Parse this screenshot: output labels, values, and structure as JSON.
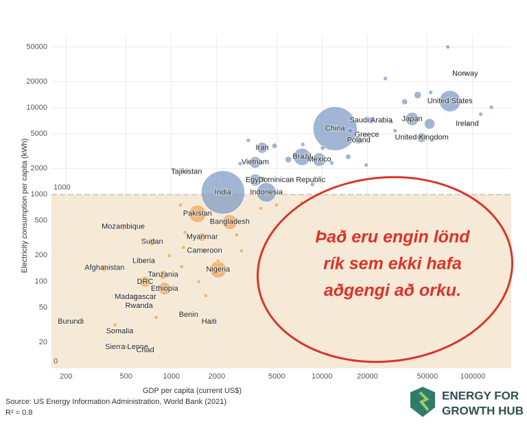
{
  "chart_data": {
    "type": "scatter",
    "x_label": "GDP per capita (current US$)",
    "y_label": "Electricity consumption per capita (kWh)",
    "x_log": true,
    "y_log": true,
    "grid": true,
    "xlim": [
      160,
      180000
    ],
    "ylim": [
      10,
      70000
    ],
    "xticks": [
      200,
      500,
      1000,
      2000,
      5000,
      10000,
      20000,
      50000,
      100000
    ],
    "yticks": [
      20,
      50,
      100,
      200,
      500,
      1000,
      2000,
      5000,
      10000,
      20000,
      50000
    ],
    "threshold": 1000,
    "threshold_label": "1000",
    "band_bottom_label": "0",
    "color_above": "#7b96c2",
    "color_below": "#f0a550",
    "shade_color": "#f6e9d6",
    "points": [
      {
        "label": "Norway",
        "x": 89000,
        "y": 24600,
        "size": 5
      },
      {
        "label": "United States",
        "x": 70600,
        "y": 11900,
        "size": 330
      },
      {
        "label": "Ireland",
        "x": 91900,
        "y": 6520,
        "size": 5
      },
      {
        "label": "Saudi Arabia",
        "x": 21100,
        "y": 7140,
        "size": 35
      },
      {
        "label": "Japan",
        "x": 39600,
        "y": 7410,
        "size": 126
      },
      {
        "label": "United Kingdom",
        "x": 45900,
        "y": 4530,
        "size": 67
      },
      {
        "label": "Greece",
        "x": 19800,
        "y": 4870,
        "size": 10
      },
      {
        "label": "Poland",
        "x": 17500,
        "y": 4210,
        "size": 38
      },
      {
        "label": "China",
        "x": 12200,
        "y": 5740,
        "size": 1410
      },
      {
        "label": "Iran",
        "x": 4000,
        "y": 3450,
        "size": 85
      },
      {
        "label": "Brazil",
        "x": 7360,
        "y": 2720,
        "size": 213
      },
      {
        "label": "Mexico",
        "x": 9570,
        "y": 2530,
        "size": 128
      },
      {
        "label": "Vietnam",
        "x": 3600,
        "y": 2350,
        "size": 97
      },
      {
        "label": "Egypt",
        "x": 3600,
        "y": 1470,
        "size": 104
      },
      {
        "label": "Dominican Republic",
        "x": 6300,
        "y": 1470,
        "size": 11
      },
      {
        "label": "Indonesia",
        "x": 4270,
        "y": 1060,
        "size": 274
      },
      {
        "label": "Tajikistan",
        "x": 1260,
        "y": 1830,
        "size": 10
      },
      {
        "label": "India",
        "x": 2200,
        "y": 1060,
        "size": 1380
      },
      {
        "label": "Pakistan",
        "x": 1490,
        "y": 600,
        "size": 225
      },
      {
        "label": "Bangladesh",
        "x": 2440,
        "y": 483,
        "size": 165
      },
      {
        "label": "Mozambique",
        "x": 479,
        "y": 425,
        "size": 32
      },
      {
        "label": "Myanmar",
        "x": 1600,
        "y": 324,
        "size": 54
      },
      {
        "label": "Sudan",
        "x": 745,
        "y": 285,
        "size": 44
      },
      {
        "label": "Cameroon",
        "x": 1660,
        "y": 225,
        "size": 27
      },
      {
        "label": "Liberia",
        "x": 656,
        "y": 171,
        "size": 5
      },
      {
        "label": "Afghanistan",
        "x": 360,
        "y": 143,
        "size": 40
      },
      {
        "label": "Nigeria",
        "x": 2040,
        "y": 137,
        "size": 206
      },
      {
        "label": "Tanzania",
        "x": 881,
        "y": 119,
        "size": 60
      },
      {
        "label": "DRC",
        "x": 670,
        "y": 99,
        "size": 90
      },
      {
        "label": "Ethiopia",
        "x": 900,
        "y": 82.6,
        "size": 115
      },
      {
        "label": "Madagascar",
        "x": 578,
        "y": 66.4,
        "size": 28
      },
      {
        "label": "Rwanda",
        "x": 610,
        "y": 52.4,
        "size": 13
      },
      {
        "label": "Benin",
        "x": 1300,
        "y": 41.4,
        "size": 12
      },
      {
        "label": "Haiti",
        "x": 1780,
        "y": 34.5,
        "size": 11
      },
      {
        "label": "Burundi",
        "x": 215,
        "y": 34.5,
        "size": 12
      },
      {
        "label": "Somalia",
        "x": 454,
        "y": 26.7,
        "size": 16
      },
      {
        "label": "Sierra Leone",
        "x": 505,
        "y": 17.6,
        "size": 8
      },
      {
        "label": "Chad",
        "x": 670,
        "y": 16.1,
        "size": 16
      },
      {
        "x": 68400,
        "y": 50000,
        "size": 1
      },
      {
        "x": 26300,
        "y": 21700,
        "size": 5
      },
      {
        "x": 43100,
        "y": 14000,
        "size": 38
      },
      {
        "x": 52600,
        "y": 15000,
        "size": 10
      },
      {
        "x": 113000,
        "y": 8410,
        "size": 6
      },
      {
        "x": 133000,
        "y": 10100,
        "size": 1
      },
      {
        "x": 35300,
        "y": 11700,
        "size": 25
      },
      {
        "x": 51700,
        "y": 6520,
        "size": 80
      },
      {
        "x": 30500,
        "y": 5430,
        "size": 10
      },
      {
        "x": 15400,
        "y": 5430,
        "size": 20
      },
      {
        "x": 28900,
        "y": 6890,
        "size": 5
      },
      {
        "x": 4840,
        "y": 3640,
        "size": 20
      },
      {
        "x": 5970,
        "y": 2530,
        "size": 30
      },
      {
        "x": 14900,
        "y": 2720,
        "size": 20
      },
      {
        "x": 10100,
        "y": 3450,
        "size": 15
      },
      {
        "x": 3240,
        "y": 4210,
        "size": 5
      },
      {
        "x": 8630,
        "y": 1310,
        "size": 5
      },
      {
        "x": 11600,
        "y": 2310,
        "size": 7
      },
      {
        "x": 19600,
        "y": 2190,
        "size": 4
      },
      {
        "x": 2860,
        "y": 2270,
        "size": 6
      },
      {
        "x": 7450,
        "y": 3780,
        "size": 8
      },
      {
        "x": 1150,
        "y": 760,
        "size": 10
      },
      {
        "x": 4990,
        "y": 760,
        "size": 5
      },
      {
        "x": 7360,
        "y": 804,
        "size": 3
      },
      {
        "x": 3920,
        "y": 695,
        "size": 10
      },
      {
        "x": 1230,
        "y": 367,
        "size": 5
      },
      {
        "x": 2710,
        "y": 342,
        "size": 5
      },
      {
        "x": 1200,
        "y": 246,
        "size": 8
      },
      {
        "x": 2920,
        "y": 225,
        "size": 4
      },
      {
        "x": 968,
        "y": 198,
        "size": 5
      },
      {
        "x": 1170,
        "y": 148,
        "size": 8
      },
      {
        "x": 2040,
        "y": 171,
        "size": 6
      },
      {
        "x": 793,
        "y": 38.5,
        "size": 3
      },
      {
        "x": 1520,
        "y": 99,
        "size": 4
      },
      {
        "x": 422,
        "y": 31.5,
        "size": 3
      },
      {
        "x": 1690,
        "y": 68.8,
        "size": 4
      }
    ],
    "annotation": {
      "lines": [
        "Það eru engin lönd",
        "rík sem ekki hafa",
        "aðgengi að orku."
      ],
      "color": "#d9342b"
    },
    "source": "Source: US Energy Information Administration, World Bank (2021)",
    "r_squared": "R² = 0.8",
    "logo": [
      "ENERGY FOR",
      "GROWTH HUB"
    ]
  }
}
